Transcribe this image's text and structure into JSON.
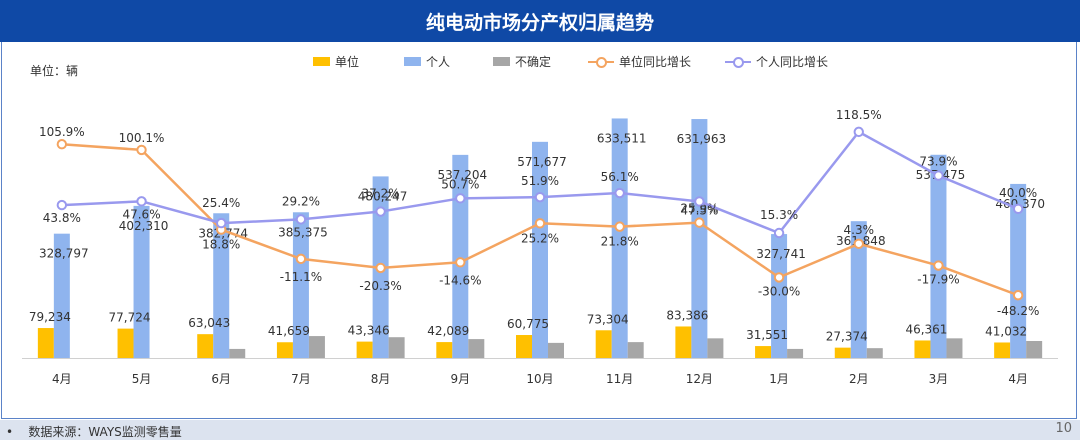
{
  "header": {
    "title": "纯电动市场分产权归属趋势"
  },
  "unit_label": "单位：辆",
  "legend": [
    {
      "label": "单位",
      "color": "#ffc000",
      "kind": "bar"
    },
    {
      "label": "个人",
      "color": "#8fb4ee",
      "kind": "bar"
    },
    {
      "label": "不确定",
      "color": "#a6a6a6",
      "kind": "bar"
    },
    {
      "label": "单位同比增长",
      "color": "#f4a460",
      "kind": "line"
    },
    {
      "label": "个人同比增长",
      "color": "#9999ee",
      "kind": "line"
    }
  ],
  "footer": {
    "bullet": "•",
    "source": "数据来源：WAYS监测零售量",
    "page": "10"
  },
  "chart_data": {
    "type": "bar",
    "categories": [
      "4月",
      "5月",
      "6月",
      "7月",
      "8月",
      "9月",
      "10月",
      "11月",
      "12月",
      "1月",
      "2月",
      "3月",
      "4月"
    ],
    "series": [
      {
        "name": "单位",
        "type": "bar",
        "color": "#ffc000",
        "values": [
          79234,
          77724,
          63043,
          41659,
          43346,
          42089,
          60775,
          73304,
          83386,
          31551,
          27374,
          46361,
          41032
        ],
        "labels": [
          "79,234",
          "77,724",
          "63,043",
          "41,659",
          "43,346",
          "42,089",
          "60,775",
          "73,304",
          "83,386",
          "31,551",
          "27,374",
          "46,361",
          "41,032"
        ]
      },
      {
        "name": "个人",
        "type": "bar",
        "color": "#8fb4ee",
        "values": [
          328797,
          402310,
          382774,
          385375,
          480247,
          537204,
          571677,
          633511,
          631963,
          327741,
          361848,
          537475,
          460370
        ],
        "labels": [
          "328,797",
          "402,310",
          "382,774",
          "385,375",
          "480,247",
          "537,204",
          "571,677",
          "633,511",
          "631,963",
          "327,741",
          "361,848",
          "537,475",
          "460,370"
        ]
      },
      {
        "name": "不确定",
        "type": "bar",
        "color": "#a6a6a6",
        "values": [
          0,
          0,
          24000,
          58000,
          55000,
          50000,
          40000,
          42000,
          52000,
          24000,
          26000,
          52000,
          45000
        ]
      },
      {
        "name": "单位同比增长",
        "type": "line",
        "color": "#f4a460",
        "values": [
          105.9,
          100.1,
          18.8,
          -11.1,
          -20.3,
          -14.6,
          25.2,
          21.8,
          25.9,
          -30.0,
          4.3,
          -17.9,
          -48.2
        ],
        "labels": [
          "105.9%",
          "100.1%",
          "18.8%",
          "-11.1%",
          "-20.3%",
          "-14.6%",
          "25.2%",
          "21.8%",
          "25.9%",
          "-30.0%",
          "4.3%",
          "-17.9%",
          "-48.2%"
        ]
      },
      {
        "name": "个人同比增长",
        "type": "line",
        "color": "#9999ee",
        "values": [
          43.8,
          47.6,
          25.4,
          29.2,
          37.2,
          50.7,
          51.9,
          56.1,
          47.5,
          15.3,
          118.5,
          73.9,
          40.0
        ],
        "labels": [
          "43.8%",
          "47.6%",
          "25.4%",
          "29.2%",
          "37.2%",
          "50.7%",
          "51.9%",
          "56.1%",
          "47.5%",
          "15.3%",
          "118.5%",
          "73.9%",
          "40.0%"
        ]
      }
    ],
    "ylim_bar": [
      0,
      640000
    ],
    "grid": false,
    "legend_position": "top"
  }
}
